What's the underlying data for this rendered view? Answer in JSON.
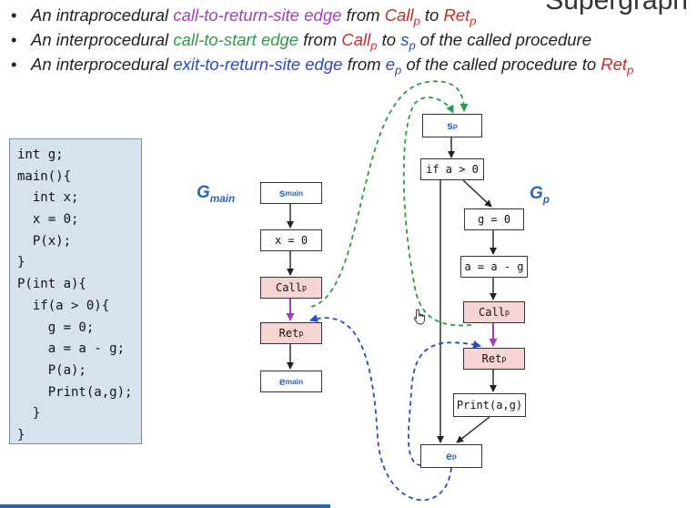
{
  "title_fragment": "Supergraph",
  "bullets": [
    {
      "pre": "An intraprocedural ",
      "edge": "call-to-return-site edge",
      "mid1": " from ",
      "from": "Call",
      "from_sub": "p",
      "mid2": " to ",
      "to": "Ret",
      "to_sub": "p",
      "post": ""
    },
    {
      "pre": "An interprocedural ",
      "edge": "call-to-start edge",
      "mid1": " from ",
      "from": "Call",
      "from_sub": "p",
      "mid2": " to ",
      "to": "s",
      "to_sub": "p",
      "post": " of the called procedure"
    },
    {
      "pre": "An interprocedural ",
      "edge": "exit-to-return-site edge",
      "mid1": " from ",
      "from": "e",
      "from_sub": "p",
      "mid2": " of the called procedure to ",
      "to": "Ret",
      "to_sub": "p",
      "post": ""
    }
  ],
  "code_lines": [
    "int g;",
    "main(){",
    "  int x;",
    "  x = 0;",
    "  P(x);",
    "}",
    "P(int a){",
    "  if(a > 0){",
    "    g = 0;",
    "    a = a - g;",
    "    P(a);",
    "    Print(a,g);",
    "  }",
    "}"
  ],
  "gmain": {
    "label": "G",
    "label_sub": "main",
    "nodes": {
      "s_main": {
        "base": "s",
        "sub": "main"
      },
      "assign": {
        "text": "x = 0"
      },
      "call": {
        "base": "Call",
        "sub": "p"
      },
      "ret": {
        "base": "Ret",
        "sub": "p"
      },
      "e_main": {
        "base": "e",
        "sub": "main"
      }
    }
  },
  "gp": {
    "label": "G",
    "label_sub": "p",
    "nodes": {
      "s_p": {
        "base": "s",
        "sub": "p"
      },
      "if": {
        "text": "if a > 0"
      },
      "g_assign": {
        "text": "g = 0"
      },
      "a_assign": {
        "text": "a = a - g"
      },
      "call": {
        "base": "Call",
        "sub": "p"
      },
      "ret": {
        "base": "Ret",
        "sub": "p"
      },
      "print": {
        "text": "Print(a,g)"
      },
      "e_p": {
        "base": "e",
        "sub": "p"
      }
    }
  },
  "colors": {
    "call_to_return": "#a13fbf",
    "call_to_start": "#2f9a4a",
    "exit_to_return": "#2a48c4",
    "node_highlight": "#f7d4d4",
    "code_bg": "#d7e2ef",
    "graph_label": "#2b63c1"
  }
}
